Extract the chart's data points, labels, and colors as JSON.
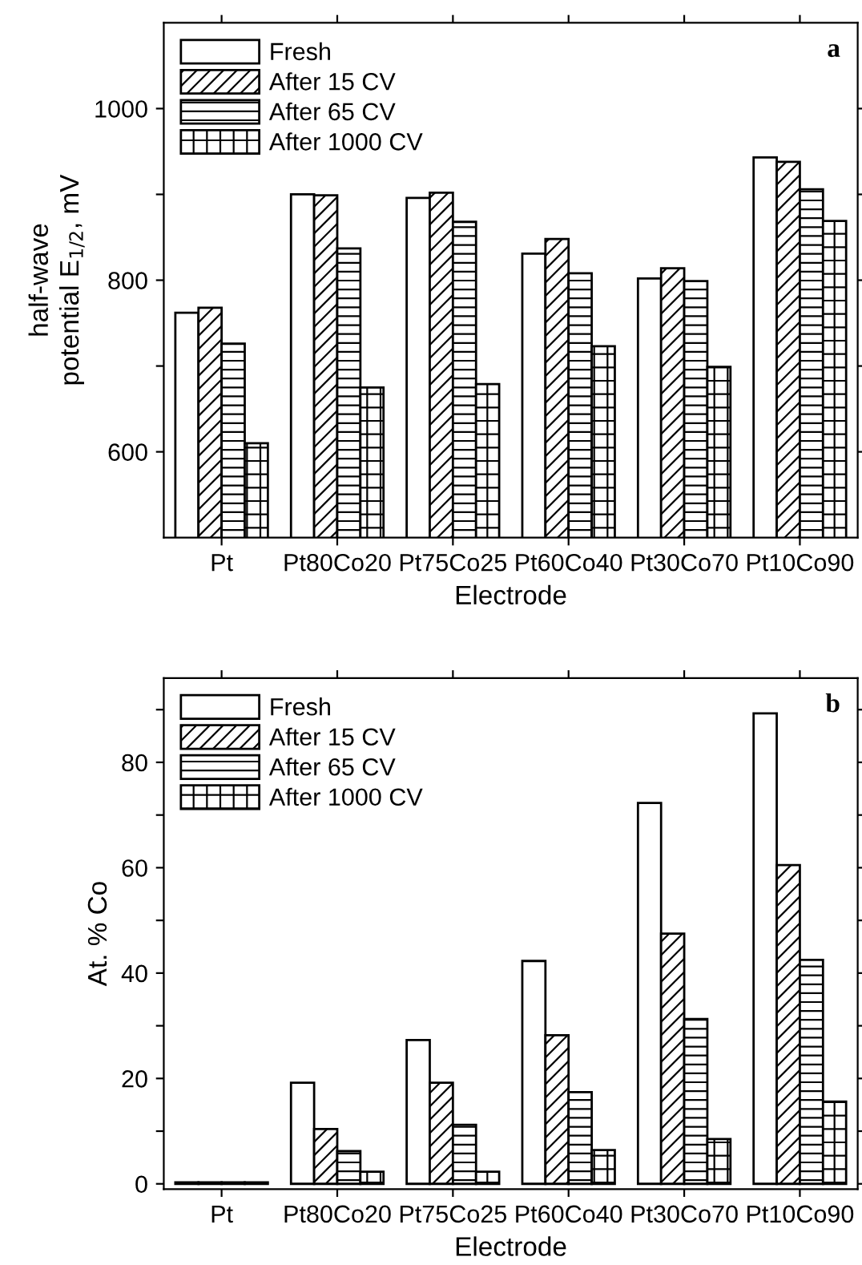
{
  "chart_data": [
    {
      "type": "bar",
      "xlabel": "Electrode",
      "ylabel": "half-wave\npotential E$_{1/2}$, mV",
      "categories": [
        "Pt",
        "Pt80Co20",
        "Pt75Co25",
        "Pt60Co40",
        "Pt30Co70",
        "Pt10Co90"
      ],
      "series": [
        {
          "name": "Fresh",
          "color": "#ffffff",
          "values": [
            762,
            900,
            896,
            831,
            802,
            943
          ]
        },
        {
          "name": "After 15 CV",
          "color": "#000000",
          "values": [
            768,
            899,
            902,
            848,
            814,
            938
          ]
        },
        {
          "name": "After 65 CV",
          "color": "#000000",
          "values": [
            726,
            837,
            868,
            808,
            799,
            906
          ]
        },
        {
          "name": "After 1000 CV",
          "color": "#000000",
          "values": [
            610,
            675,
            679,
            723,
            699,
            869
          ]
        }
      ],
      "ylim": [
        500,
        1100
      ],
      "yticks": [
        {
          "value": 600,
          "label": "600"
        },
        {
          "value": 700,
          "label": null
        },
        {
          "value": 800,
          "label": "800"
        },
        {
          "value": 900,
          "label": null
        },
        {
          "value": 1000,
          "label": "1000"
        }
      ],
      "annotations": [
        "a"
      ],
      "legend": "top left",
      "grid": false
    },
    {
      "type": "bar",
      "xlabel": "Electrode",
      "ylabel": "At. % Co",
      "categories": [
        "Pt",
        "Pt80Co20",
        "Pt75Co25",
        "Pt60Co40",
        "Pt30Co70",
        "Pt10Co90"
      ],
      "series": [
        {
          "name": "Fresh",
          "color": "#ffffff",
          "values": [
            0.3,
            19.2,
            27.3,
            42.3,
            72.3,
            89.3
          ]
        },
        {
          "name": "After 15 CV",
          "color": "#000000",
          "values": [
            0.3,
            10.4,
            19.2,
            28.2,
            47.5,
            60.5
          ]
        },
        {
          "name": "After 65 CV",
          "color": "#000000",
          "values": [
            0.3,
            6.2,
            11.2,
            17.4,
            31.3,
            42.5
          ]
        },
        {
          "name": "After 1000 CV",
          "color": "#000000",
          "values": [
            0.3,
            2.3,
            2.3,
            6.4,
            8.5,
            15.6
          ]
        }
      ],
      "ylim": [
        -1,
        96
      ],
      "yticks": [
        0,
        {
          "value": 10,
          "label": null
        },
        20,
        {
          "value": 30,
          "label": null
        },
        40,
        {
          "value": 50,
          "label": null
        },
        60,
        {
          "value": 70,
          "label": null
        },
        80,
        {
          "value": 90,
          "label": null
        }
      ],
      "annotations": [
        "b"
      ],
      "legend": "top left",
      "grid": false
    }
  ]
}
